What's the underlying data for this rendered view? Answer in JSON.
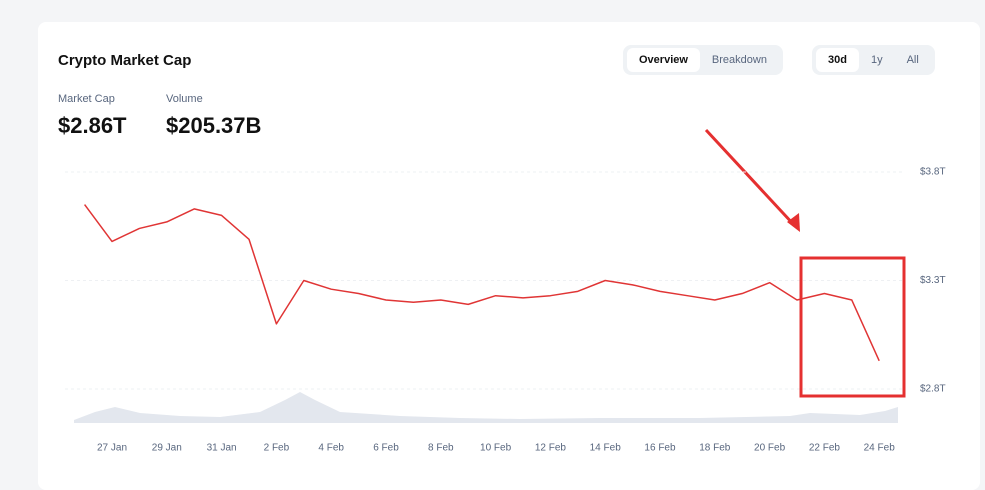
{
  "title": "Crypto Market Cap",
  "tabs": [
    "Overview",
    "Breakdown"
  ],
  "ranges": [
    "30d",
    "1y",
    "All"
  ],
  "stats": [
    {
      "label": "Market Cap",
      "value": "$2.86T"
    },
    {
      "label": "Volume",
      "value": "$205.37B"
    }
  ],
  "chart_data": {
    "type": "line",
    "color": "#e03535",
    "categories": [
      null,
      "27 Jan",
      null,
      "29 Jan",
      null,
      "31 Jan",
      null,
      "2 Feb",
      null,
      "4 Feb",
      null,
      "6 Feb",
      null,
      "8 Feb",
      null,
      "10 Feb",
      null,
      "12 Feb",
      null,
      "14 Feb",
      null,
      "16 Feb",
      null,
      "18 Feb",
      null,
      "20 Feb",
      null,
      "22 Feb",
      null,
      "24 Feb"
    ],
    "values": [
      3.65,
      3.48,
      3.54,
      3.57,
      3.63,
      3.6,
      3.49,
      3.1,
      3.3,
      3.26,
      3.24,
      3.21,
      3.2,
      3.21,
      3.19,
      3.23,
      3.22,
      3.23,
      3.25,
      3.3,
      3.28,
      3.25,
      3.23,
      3.21,
      3.24,
      3.29,
      3.21,
      3.24,
      3.21,
      2.93
    ],
    "ylim": [
      2.8,
      3.8
    ],
    "yticks": [
      {
        "value": 3.8,
        "label": "$3.8T"
      },
      {
        "value": 3.3,
        "label": "$3.3T"
      },
      {
        "value": 2.8,
        "label": "$2.8T"
      }
    ],
    "grid": true
  }
}
